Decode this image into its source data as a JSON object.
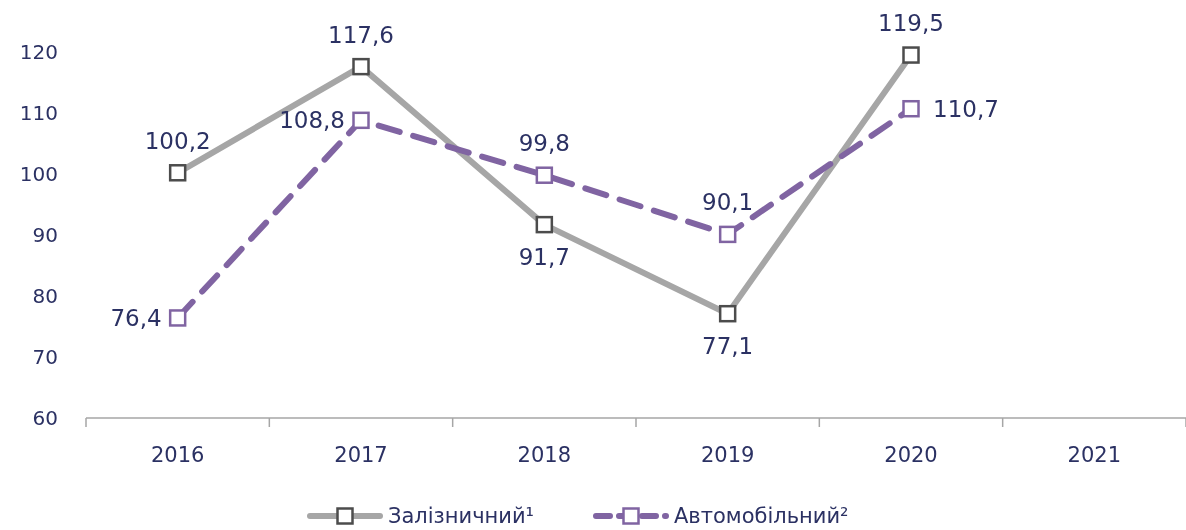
{
  "chart_data": {
    "type": "line",
    "categories": [
      "2016",
      "2017",
      "2018",
      "2019",
      "2020",
      "2021"
    ],
    "series": [
      {
        "name": "Залізничний¹",
        "color": "#a6a6a6",
        "line_style": "solid",
        "values": [
          100.2,
          117.6,
          91.7,
          77.1,
          119.5,
          null
        ],
        "value_labels": [
          "100,2",
          "117,6",
          "91,7",
          "77,1",
          "119,5",
          null
        ]
      },
      {
        "name": "Автомобільний²",
        "color": "#8064a2",
        "line_style": "dashed",
        "values": [
          76.4,
          108.8,
          99.8,
          90.1,
          110.7,
          null
        ],
        "value_labels": [
          "76,4",
          "108,8",
          "99,8",
          "90,1",
          "110,7",
          null
        ]
      }
    ],
    "ylim": [
      60,
      120
    ],
    "yticks": [
      60,
      70,
      80,
      90,
      100,
      110,
      120
    ],
    "grid": false,
    "legend": "bottom",
    "marker": "square"
  }
}
